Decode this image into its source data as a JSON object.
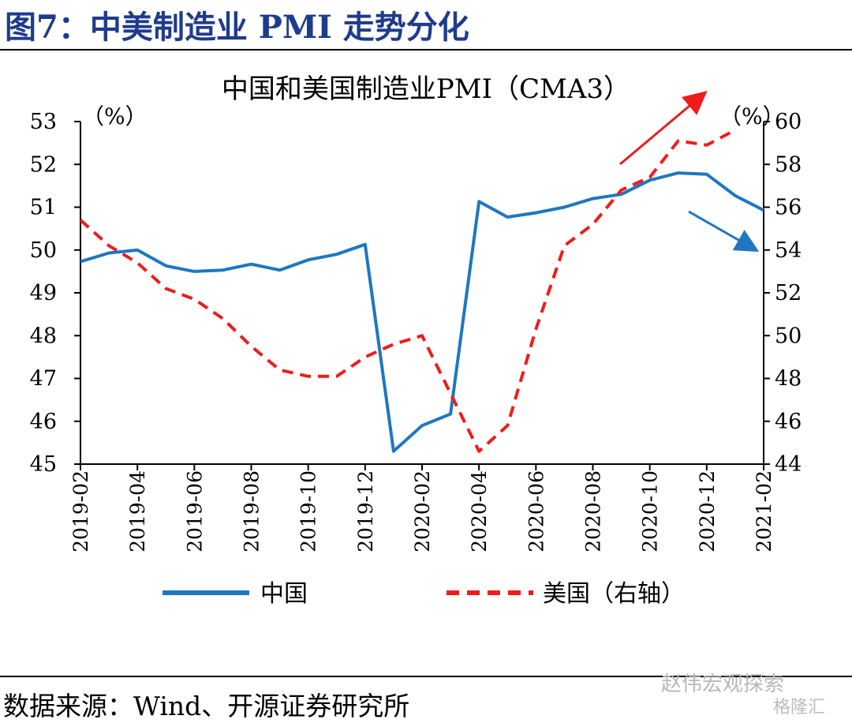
{
  "figure": {
    "title": "图7：中美制造业 PMI 走势分化",
    "source": "数据来源：Wind、开源证券研究所",
    "watermark": "赵伟宏观探索",
    "watermark2": "格隆汇"
  },
  "chart_data": {
    "type": "line",
    "title": "中国和美国制造业PMI（CMA3）",
    "ylabel_left": "（%）",
    "ylabel_right": "（%）",
    "ylim_left": [
      45,
      53
    ],
    "yticks_left": [
      45,
      46,
      47,
      48,
      49,
      50,
      51,
      52,
      53
    ],
    "ylim_right": [
      44,
      60
    ],
    "yticks_right": [
      44,
      46,
      48,
      50,
      52,
      54,
      56,
      58,
      60
    ],
    "x": [
      "2019-02",
      "2019-03",
      "2019-04",
      "2019-05",
      "2019-06",
      "2019-07",
      "2019-08",
      "2019-09",
      "2019-10",
      "2019-11",
      "2019-12",
      "2020-01",
      "2020-02",
      "2020-03",
      "2020-04",
      "2020-05",
      "2020-06",
      "2020-07",
      "2020-08",
      "2020-09",
      "2020-10",
      "2020-11",
      "2020-12",
      "2021-01",
      "2021-02"
    ],
    "xtick_labels": [
      "2019-02",
      "2019-04",
      "2019-06",
      "2019-08",
      "2019-10",
      "2019-12",
      "2020-02",
      "2020-04",
      "2020-06",
      "2020-08",
      "2020-10",
      "2020-12",
      "2021-02"
    ],
    "series": [
      {
        "name": "中国",
        "axis": "left",
        "color": "#1f77c0",
        "style": "solid",
        "values": [
          49.73,
          49.93,
          50.0,
          49.63,
          49.5,
          49.53,
          49.67,
          49.53,
          49.77,
          49.9,
          50.13,
          45.3,
          45.9,
          46.17,
          51.13,
          50.77,
          50.87,
          51.0,
          51.2,
          51.3,
          51.63,
          51.8,
          51.77,
          51.27,
          50.93
        ]
      },
      {
        "name": "美国（右轴）",
        "axis": "right",
        "color": "#ee1c1c",
        "style": "dashed",
        "values": [
          55.4,
          54.2,
          53.4,
          52.2,
          51.7,
          50.8,
          49.5,
          48.4,
          48.1,
          48.1,
          49.0,
          49.6,
          50.0,
          47.3,
          44.6,
          45.8,
          50.3,
          54.2,
          55.2,
          56.8,
          57.4,
          59.1,
          58.9,
          59.6,
          null
        ]
      }
    ],
    "legend": {
      "placement": "bottom",
      "entries": [
        "中国",
        "美国（右轴）"
      ]
    },
    "grid": false,
    "annotations": [
      {
        "type": "arrow",
        "color": "#ee1c1c",
        "direction": "up-right",
        "near": "2020-09 to 2021-01, top"
      },
      {
        "type": "arrow",
        "color": "#1f77c0",
        "direction": "down-right",
        "near": "2020-11 to 2021-02"
      }
    ]
  }
}
